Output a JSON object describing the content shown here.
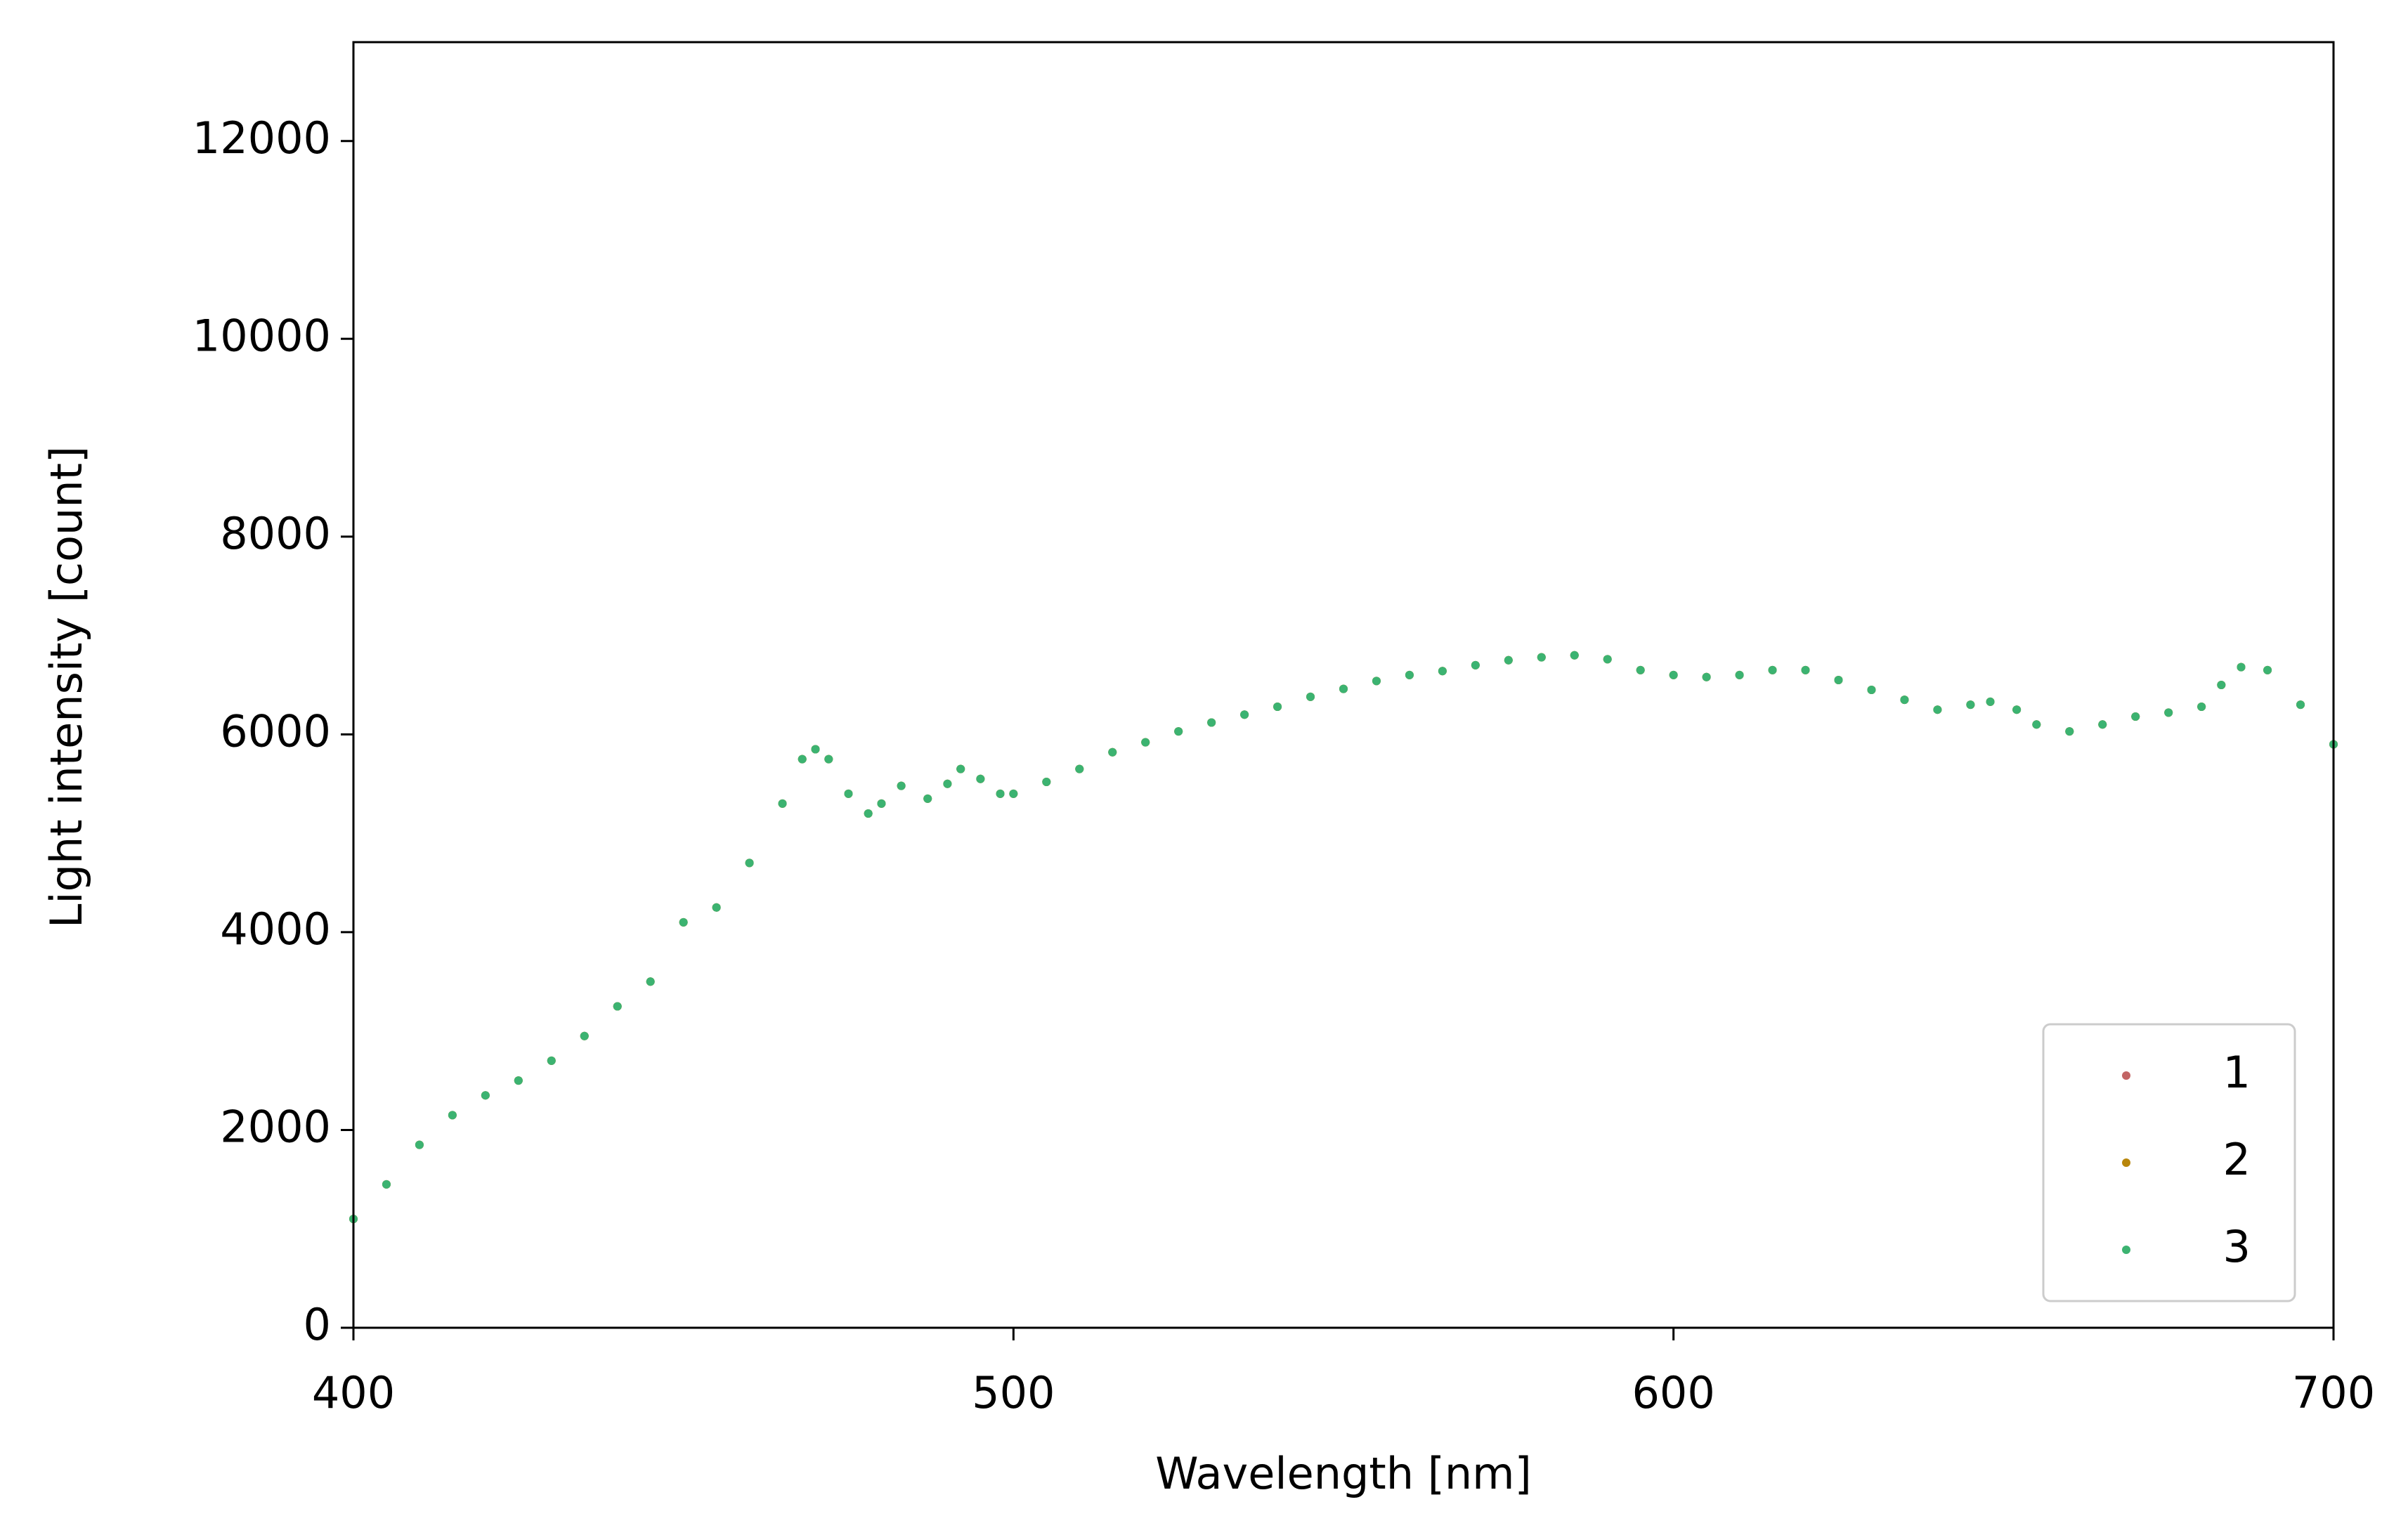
{
  "chart_data": {
    "type": "scatter",
    "xlabel": "Wavelength [nm]",
    "ylabel": "Light intensity [count]",
    "xlim": [
      400,
      700
    ],
    "ylim": [
      0,
      13000
    ],
    "xticks": [
      400,
      500,
      600,
      700
    ],
    "yticks": [
      0,
      2000,
      4000,
      6000,
      8000,
      10000,
      12000
    ],
    "legend": "lower right",
    "x": [
      400,
      405,
      410,
      415,
      420,
      425,
      430,
      435,
      440,
      445,
      450,
      455,
      460,
      465,
      468,
      470,
      472,
      475,
      478,
      480,
      483,
      487,
      490,
      492,
      495,
      498,
      500,
      505,
      510,
      515,
      520,
      525,
      530,
      535,
      540,
      545,
      550,
      555,
      560,
      565,
      570,
      575,
      580,
      585,
      590,
      595,
      600,
      605,
      610,
      615,
      620,
      625,
      630,
      635,
      640,
      645,
      648,
      652,
      655,
      660,
      665,
      670,
      675,
      680,
      683,
      686,
      690,
      695,
      700
    ],
    "series": [
      {
        "name": "1",
        "color": "#c26565",
        "values": [
          1100,
          1450,
          1850,
          2150,
          2350,
          2500,
          2700,
          2950,
          3250,
          3500,
          4100,
          4250,
          4700,
          5300,
          5750,
          5850,
          5750,
          5400,
          5200,
          5300,
          5480,
          5350,
          5500,
          5650,
          5550,
          5400,
          5400,
          5520,
          5650,
          5820,
          5920,
          6030,
          6120,
          6200,
          6280,
          6380,
          6460,
          6540,
          6600,
          6640,
          6700,
          6750,
          6780,
          6800,
          6760,
          6650,
          6600,
          6580,
          6600,
          6650,
          6650,
          6550,
          6450,
          6350,
          6250,
          6300,
          6330,
          6250,
          6100,
          6030,
          6100,
          6180,
          6220,
          6280,
          6500,
          6680,
          6650,
          6300,
          5900
        ]
      },
      {
        "name": "2",
        "color": "#b8860b",
        "values": [
          1100,
          1450,
          1850,
          2150,
          2350,
          2500,
          2700,
          2950,
          3250,
          3500,
          4100,
          4250,
          4700,
          5300,
          5750,
          5850,
          5750,
          5400,
          5200,
          5300,
          5480,
          5350,
          5500,
          5650,
          5550,
          5400,
          5400,
          5520,
          5650,
          5820,
          5920,
          6030,
          6120,
          6200,
          6280,
          6380,
          6460,
          6540,
          6600,
          6640,
          6700,
          6750,
          6780,
          6800,
          6760,
          6650,
          6600,
          6580,
          6600,
          6650,
          6650,
          6550,
          6450,
          6350,
          6250,
          6300,
          6330,
          6250,
          6100,
          6030,
          6100,
          6180,
          6220,
          6280,
          6500,
          6680,
          6650,
          6300,
          5900
        ]
      },
      {
        "name": "3",
        "color": "#3cb371",
        "values": [
          1100,
          1450,
          1850,
          2150,
          2350,
          2500,
          2700,
          2950,
          3250,
          3500,
          4100,
          4250,
          4700,
          5300,
          5750,
          5850,
          5750,
          5400,
          5200,
          5300,
          5480,
          5350,
          5500,
          5650,
          5550,
          5400,
          5400,
          5520,
          5650,
          5820,
          5920,
          6030,
          6120,
          6200,
          6280,
          6380,
          6460,
          6540,
          6600,
          6640,
          6700,
          6750,
          6780,
          6800,
          6760,
          6650,
          6600,
          6580,
          6600,
          6650,
          6650,
          6550,
          6450,
          6350,
          6250,
          6300,
          6330,
          6250,
          6100,
          6030,
          6100,
          6180,
          6220,
          6280,
          6500,
          6680,
          6650,
          6300,
          5900
        ]
      }
    ]
  }
}
